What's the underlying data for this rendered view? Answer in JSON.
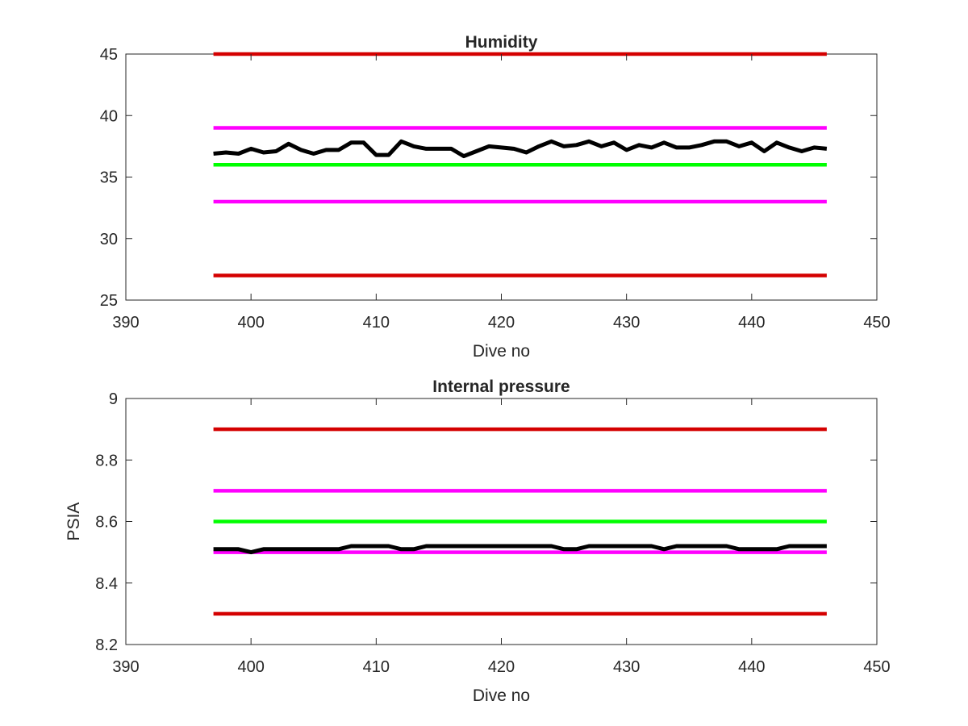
{
  "chart_data": [
    {
      "type": "line",
      "title": "Humidity",
      "xlabel": "Dive no",
      "ylabel": "",
      "xlim": [
        390,
        450
      ],
      "ylim": [
        25,
        45
      ],
      "xticks": [
        "390",
        "400",
        "410",
        "420",
        "430",
        "440",
        "450"
      ],
      "yticks": [
        "25",
        "30",
        "35",
        "40",
        "45"
      ],
      "grid": false,
      "series": [
        {
          "color": "#d40000",
          "x": [
            397,
            446
          ],
          "y": [
            45,
            45
          ]
        },
        {
          "color": "#ff00ff",
          "x": [
            397,
            446
          ],
          "y": [
            39,
            39
          ]
        },
        {
          "color": "#00ff00",
          "x": [
            397,
            446
          ],
          "y": [
            36,
            36
          ]
        },
        {
          "color": "#ff00ff",
          "x": [
            397,
            446
          ],
          "y": [
            33,
            33
          ]
        },
        {
          "color": "#d40000",
          "x": [
            397,
            446
          ],
          "y": [
            27,
            27
          ]
        },
        {
          "color": "#000000",
          "x": [
            397,
            398,
            399,
            400,
            401,
            402,
            403,
            404,
            405,
            406,
            407,
            408,
            409,
            410,
            411,
            412,
            413,
            414,
            415,
            416,
            417,
            418,
            419,
            420,
            421,
            422,
            423,
            424,
            425,
            426,
            427,
            428,
            429,
            430,
            431,
            432,
            433,
            434,
            435,
            436,
            437,
            438,
            439,
            440,
            441,
            442,
            443,
            444,
            445,
            446
          ],
          "y": [
            36.9,
            37.0,
            36.9,
            37.3,
            37.0,
            37.1,
            37.7,
            37.2,
            36.9,
            37.2,
            37.2,
            37.8,
            37.8,
            36.8,
            36.8,
            37.9,
            37.5,
            37.3,
            37.3,
            37.3,
            36.7,
            37.1,
            37.5,
            37.4,
            37.3,
            37.0,
            37.5,
            37.9,
            37.5,
            37.6,
            37.9,
            37.5,
            37.8,
            37.2,
            37.6,
            37.4,
            37.8,
            37.4,
            37.4,
            37.6,
            37.9,
            37.9,
            37.5,
            37.8,
            37.1,
            37.8,
            37.4,
            37.1,
            37.4,
            37.3
          ]
        }
      ]
    },
    {
      "type": "line",
      "title": "Internal pressure",
      "xlabel": "Dive no",
      "ylabel": "PSIA",
      "xlim": [
        390,
        450
      ],
      "ylim": [
        8.2,
        9.0
      ],
      "xticks": [
        "390",
        "400",
        "410",
        "420",
        "430",
        "440",
        "450"
      ],
      "yticks": [
        "8.2",
        "8.4",
        "8.6",
        "8.8",
        "9"
      ],
      "grid": false,
      "series": [
        {
          "color": "#d40000",
          "x": [
            397,
            446
          ],
          "y": [
            8.9,
            8.9
          ]
        },
        {
          "color": "#ff00ff",
          "x": [
            397,
            446
          ],
          "y": [
            8.7,
            8.7
          ]
        },
        {
          "color": "#00ff00",
          "x": [
            397,
            446
          ],
          "y": [
            8.6,
            8.6
          ]
        },
        {
          "color": "#ff00ff",
          "x": [
            397,
            446
          ],
          "y": [
            8.5,
            8.5
          ]
        },
        {
          "color": "#d40000",
          "x": [
            397,
            446
          ],
          "y": [
            8.3,
            8.3
          ]
        },
        {
          "color": "#000000",
          "x": [
            397,
            398,
            399,
            400,
            401,
            402,
            403,
            404,
            405,
            406,
            407,
            408,
            409,
            410,
            411,
            412,
            413,
            414,
            415,
            416,
            417,
            418,
            419,
            420,
            421,
            422,
            423,
            424,
            425,
            426,
            427,
            428,
            429,
            430,
            431,
            432,
            433,
            434,
            435,
            436,
            437,
            438,
            439,
            440,
            441,
            442,
            443,
            444,
            445,
            446
          ],
          "y": [
            8.51,
            8.51,
            8.51,
            8.5,
            8.51,
            8.51,
            8.51,
            8.51,
            8.51,
            8.51,
            8.51,
            8.52,
            8.52,
            8.52,
            8.52,
            8.51,
            8.51,
            8.52,
            8.52,
            8.52,
            8.52,
            8.52,
            8.52,
            8.52,
            8.52,
            8.52,
            8.52,
            8.52,
            8.51,
            8.51,
            8.52,
            8.52,
            8.52,
            8.52,
            8.52,
            8.52,
            8.51,
            8.52,
            8.52,
            8.52,
            8.52,
            8.52,
            8.51,
            8.51,
            8.51,
            8.51,
            8.52,
            8.52,
            8.52,
            8.52
          ]
        }
      ]
    }
  ]
}
